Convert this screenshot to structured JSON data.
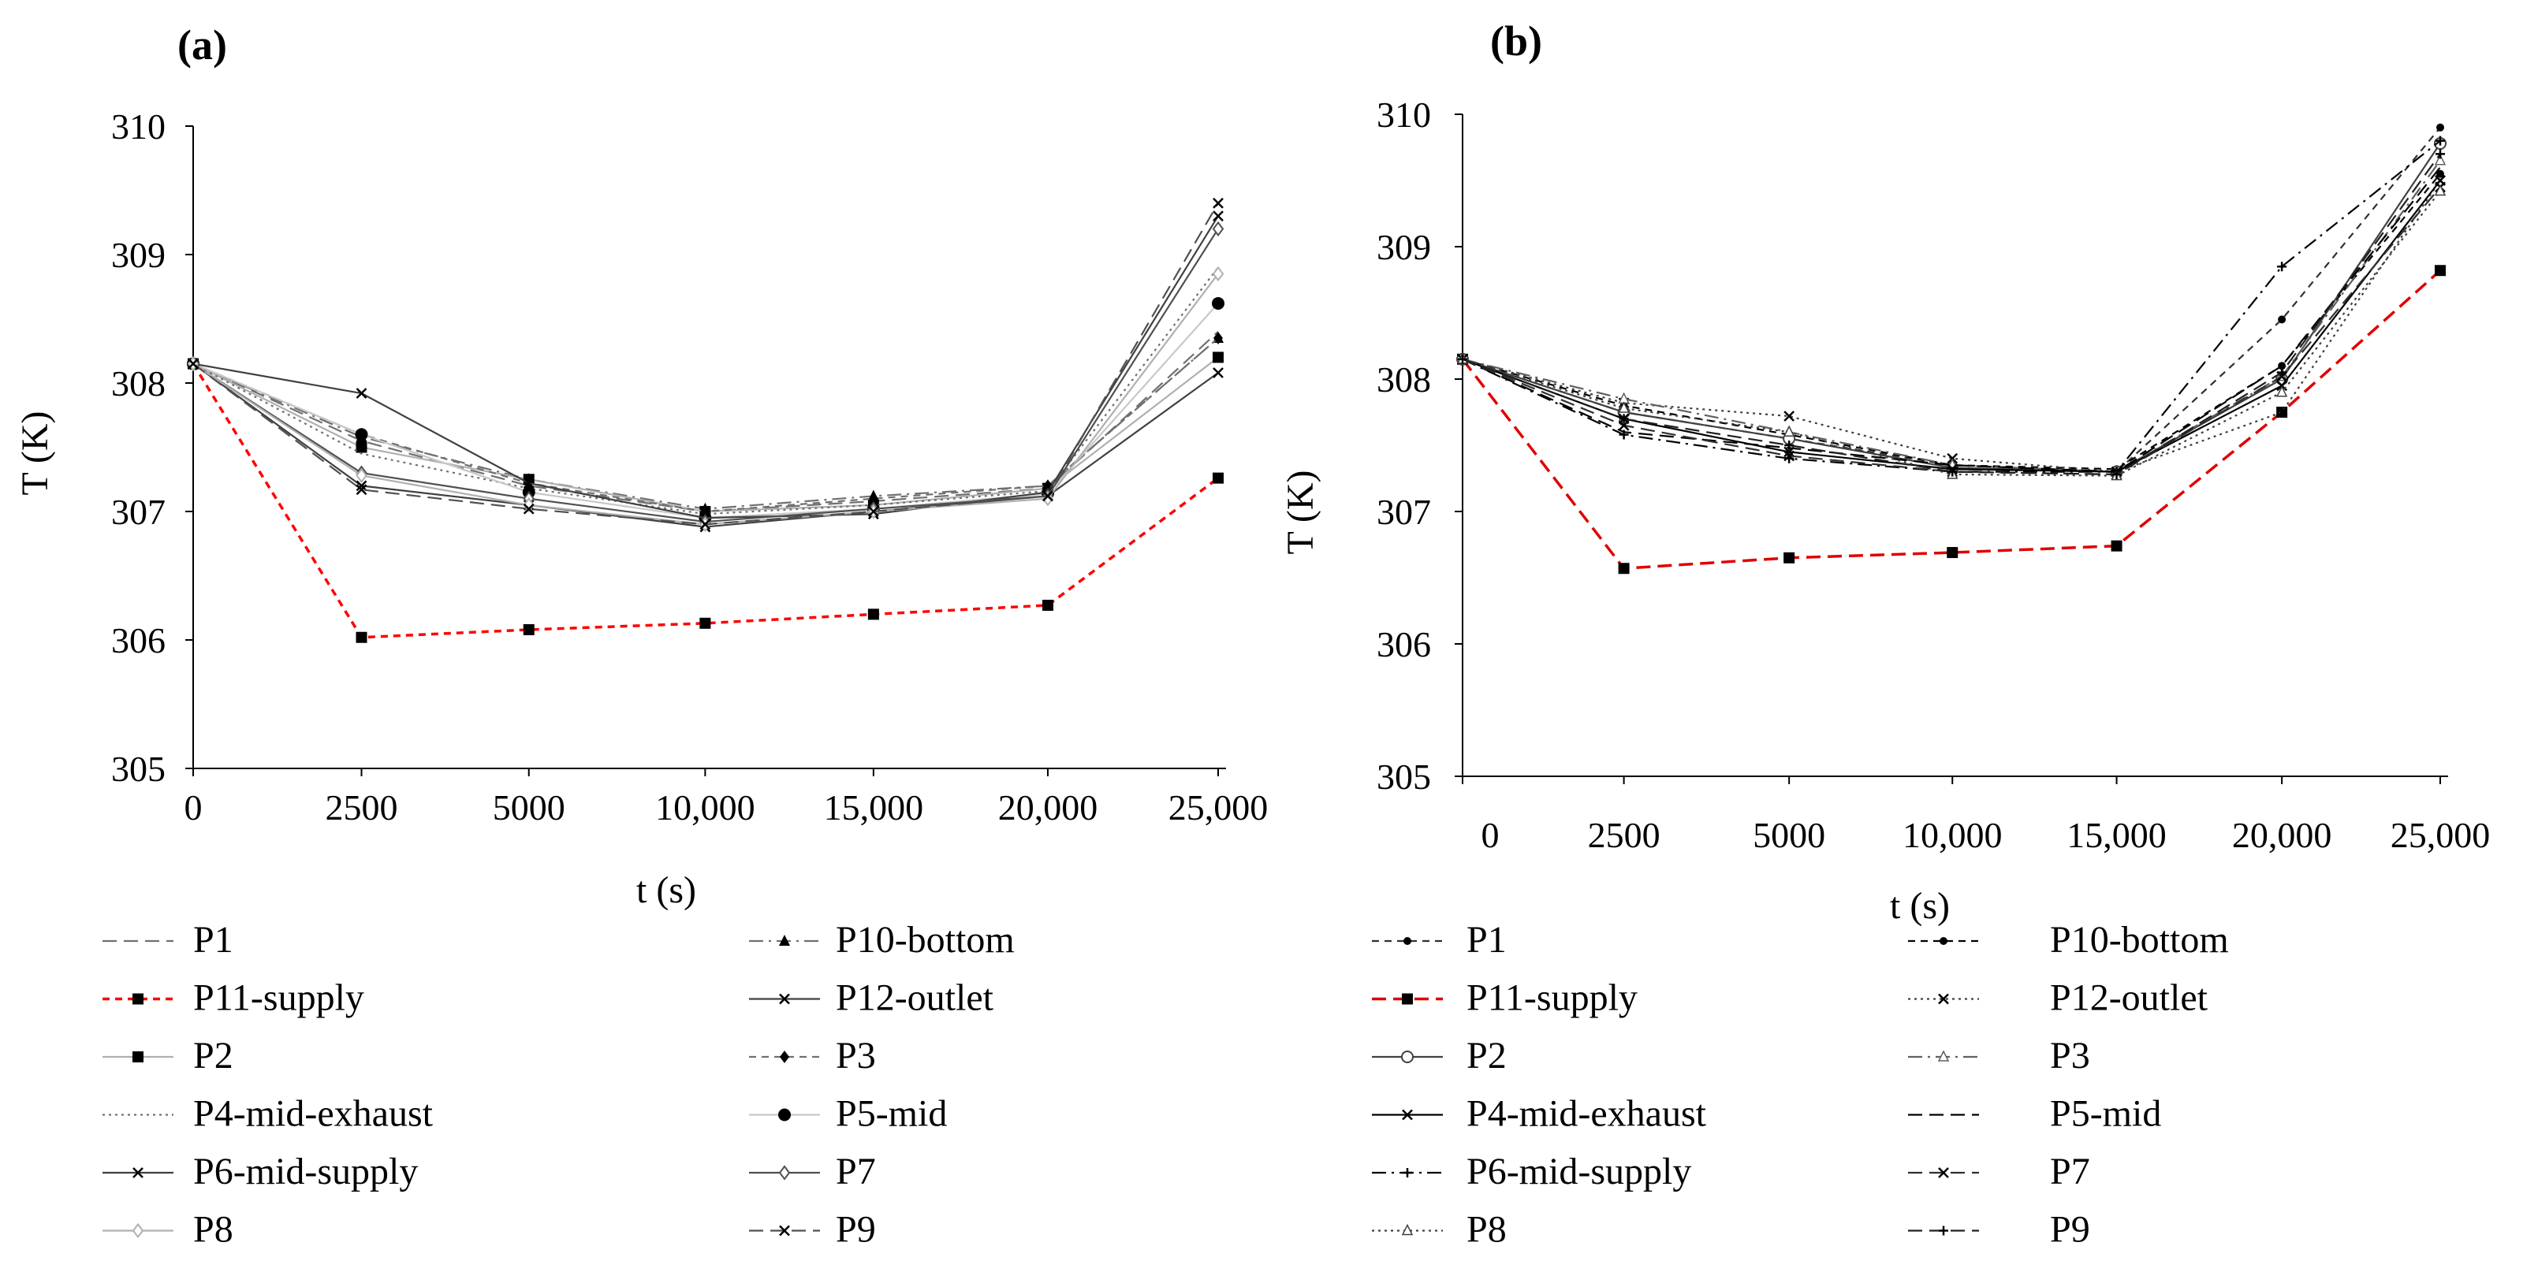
{
  "chart_data": [
    {
      "panel": "(a)",
      "type": "line",
      "xlabel": "t (s)",
      "ylabel": "T (K)",
      "ylim": [
        305,
        310
      ],
      "yticks": [
        "305",
        "306",
        "307",
        "308",
        "309",
        "310"
      ],
      "categories": [
        "0",
        "2500",
        "5000",
        "10,000",
        "15,000",
        "20,000",
        "25,000"
      ],
      "grid": false,
      "legend_position": "bottom",
      "series": [
        {
          "name": "P1",
          "dash": "long",
          "marker": "none",
          "color": "#707070",
          "values": [
            308.15,
            307.55,
            307.2,
            307.0,
            307.08,
            307.18,
            308.4
          ]
        },
        {
          "name": "P10-bottom",
          "dash": "dashdot",
          "marker": "triangle",
          "color": "#707070",
          "values": [
            308.15,
            307.58,
            307.25,
            307.02,
            307.12,
            307.2,
            308.35
          ]
        },
        {
          "name": "P11-supply",
          "dash": "short",
          "marker": "square",
          "color": "#ff0000",
          "values": [
            308.15,
            306.02,
            306.08,
            306.13,
            306.2,
            306.27,
            307.26
          ]
        },
        {
          "name": "P12-outlet",
          "dash": "solid",
          "marker": "x",
          "color": "#404040",
          "values": [
            308.15,
            307.2,
            307.05,
            306.88,
            307.0,
            307.12,
            308.08
          ]
        },
        {
          "name": "P2",
          "dash": "solid",
          "marker": "square",
          "color": "#b0b0b0",
          "values": [
            308.15,
            307.5,
            307.25,
            307.0,
            307.05,
            307.18,
            308.2
          ]
        },
        {
          "name": "P3",
          "dash": "short",
          "marker": "diamond",
          "color": "#707070",
          "values": [
            308.15,
            307.6,
            307.22,
            307.0,
            307.1,
            307.2,
            308.35
          ]
        },
        {
          "name": "P4-mid-exhaust",
          "dash": "dotted",
          "marker": "none",
          "color": "#707070",
          "values": [
            308.15,
            307.45,
            307.18,
            306.98,
            307.05,
            307.16,
            308.9
          ]
        },
        {
          "name": "P5-mid",
          "dash": "solid",
          "marker": "circle",
          "color": "#c8c8c8",
          "values": [
            308.15,
            307.6,
            307.15,
            306.95,
            307.02,
            307.14,
            308.62
          ]
        },
        {
          "name": "P6-mid-supply",
          "dash": "solid",
          "marker": "x",
          "color": "#404040",
          "values": [
            308.15,
            307.92,
            307.22,
            306.95,
            306.98,
            307.15,
            309.3
          ]
        },
        {
          "name": "P7",
          "dash": "solid",
          "marker": "diamond-open",
          "color": "#505050",
          "values": [
            308.15,
            307.3,
            307.1,
            306.92,
            307.02,
            307.12,
            309.2
          ]
        },
        {
          "name": "P8",
          "dash": "solid",
          "marker": "diamond-open",
          "color": "#b0b0b0",
          "values": [
            308.15,
            307.28,
            307.05,
            306.9,
            307.0,
            307.1,
            308.85
          ]
        },
        {
          "name": "P9",
          "dash": "long",
          "marker": "x",
          "color": "#505050",
          "values": [
            308.15,
            307.17,
            307.02,
            306.9,
            307.0,
            307.12,
            309.4
          ]
        }
      ]
    },
    {
      "panel": "(b)",
      "type": "line",
      "xlabel": "t (s)",
      "ylabel": "T (K)",
      "ylim": [
        305,
        310
      ],
      "yticks": [
        "305",
        "306",
        "307",
        "308",
        "309",
        "310"
      ],
      "categories": [
        "0",
        "2500",
        "5000",
        "10,000",
        "15,000",
        "20,000",
        "25,000"
      ],
      "grid": false,
      "legend_position": "bottom",
      "series": [
        {
          "name": "P1",
          "dash": "short",
          "marker": "circle-small",
          "color": "#303030",
          "values": [
            308.15,
            307.75,
            307.55,
            307.35,
            307.3,
            308.45,
            309.9
          ]
        },
        {
          "name": "P10-bottom",
          "dash": "short",
          "marker": "circle-small",
          "color": "#000000",
          "values": [
            308.15,
            307.8,
            307.58,
            307.35,
            307.32,
            308.1,
            309.55
          ]
        },
        {
          "name": "P11-supply",
          "dash": "long",
          "marker": "square",
          "color": "#e00000",
          "values": [
            308.15,
            306.57,
            306.65,
            306.69,
            306.74,
            307.75,
            308.82
          ]
        },
        {
          "name": "P12-outlet",
          "dash": "dotted",
          "marker": "x",
          "color": "#404040",
          "values": [
            308.15,
            307.82,
            307.72,
            307.4,
            307.3,
            307.75,
            309.5
          ]
        },
        {
          "name": "P2",
          "dash": "solid",
          "marker": "circle-open",
          "color": "#404040",
          "values": [
            308.15,
            307.75,
            307.55,
            307.33,
            307.3,
            308.0,
            309.78
          ]
        },
        {
          "name": "P3",
          "dash": "dashdot",
          "marker": "triangle-open",
          "color": "#606060",
          "values": [
            308.15,
            307.85,
            307.6,
            307.35,
            307.3,
            308.02,
            309.65
          ]
        },
        {
          "name": "P4-mid-exhaust",
          "dash": "solid",
          "marker": "x",
          "color": "#000000",
          "values": [
            308.15,
            307.7,
            307.45,
            307.32,
            307.3,
            307.95,
            309.5
          ]
        },
        {
          "name": "P5-mid",
          "dash": "long",
          "marker": "none",
          "color": "#000000",
          "values": [
            308.15,
            307.6,
            307.48,
            307.35,
            307.3,
            308.1,
            309.6
          ]
        },
        {
          "name": "P6-mid-supply",
          "dash": "dashdot",
          "marker": "plus",
          "color": "#000000",
          "values": [
            308.15,
            307.58,
            307.4,
            307.3,
            307.3,
            308.85,
            309.8
          ]
        },
        {
          "name": "P7",
          "dash": "long",
          "marker": "x",
          "color": "#303030",
          "values": [
            308.15,
            307.65,
            307.42,
            307.3,
            307.28,
            308.02,
            309.45
          ]
        },
        {
          "name": "P8",
          "dash": "dotted",
          "marker": "triangle-open",
          "color": "#404040",
          "values": [
            308.15,
            307.78,
            307.6,
            307.28,
            307.27,
            307.9,
            309.42
          ]
        },
        {
          "name": "P9",
          "dash": "long",
          "marker": "plus",
          "color": "#202020",
          "values": [
            308.15,
            307.7,
            307.5,
            307.3,
            307.28,
            308.05,
            309.7
          ]
        }
      ]
    }
  ]
}
